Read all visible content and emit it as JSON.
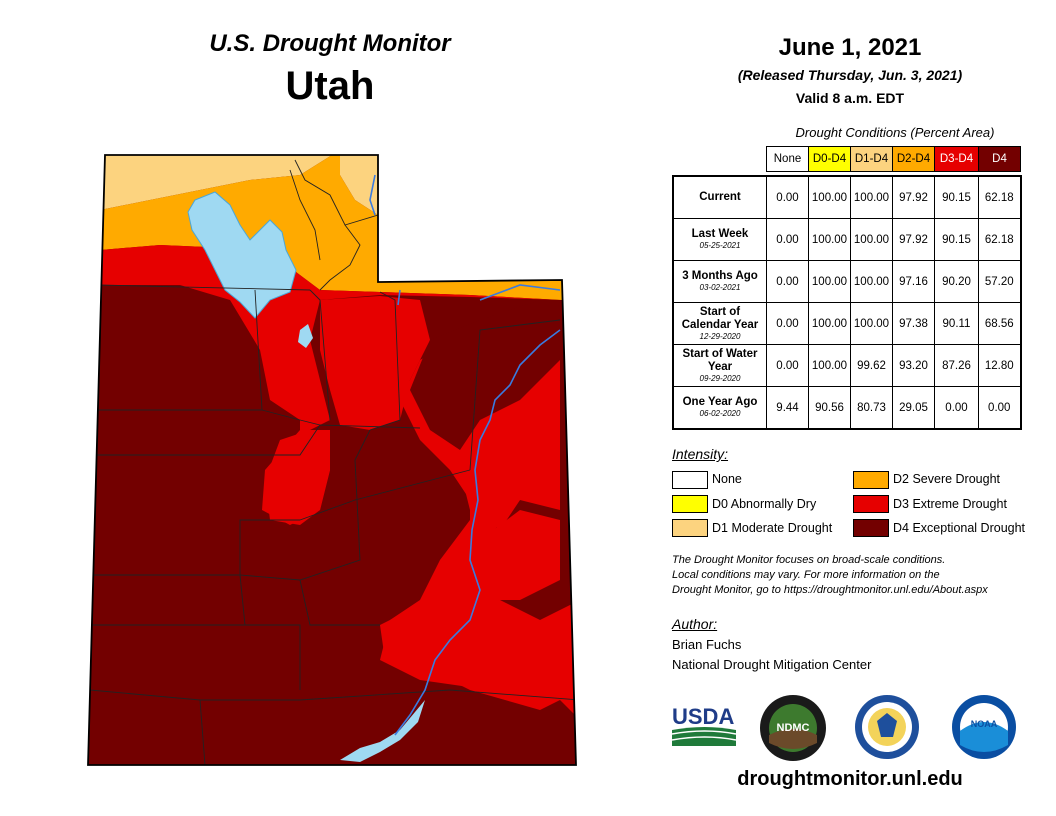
{
  "header": {
    "monitor_title": "U.S. Drought Monitor",
    "state": "Utah",
    "date": "June 1, 2021",
    "released": "(Released Thursday, Jun. 3, 2021)",
    "valid": "Valid 8 a.m. EDT"
  },
  "table": {
    "caption": "Drought Conditions (Percent Area)",
    "columns": [
      {
        "label": "None",
        "color": "#ffffff"
      },
      {
        "label": "D0-D4",
        "color": "#ffff00"
      },
      {
        "label": "D1-D4",
        "color": "#fcd37f"
      },
      {
        "label": "D2-D4",
        "color": "#ffaa00"
      },
      {
        "label": "D3-D4",
        "color": "#e60000"
      },
      {
        "label": "D4",
        "color": "#730000"
      }
    ],
    "rows": [
      {
        "label": "Current",
        "sub": "",
        "values": [
          "0.00",
          "100.00",
          "100.00",
          "97.92",
          "90.15",
          "62.18"
        ]
      },
      {
        "label": "Last Week",
        "sub": "05-25-2021",
        "values": [
          "0.00",
          "100.00",
          "100.00",
          "97.92",
          "90.15",
          "62.18"
        ]
      },
      {
        "label": "3 Months Ago",
        "sub": "03-02-2021",
        "values": [
          "0.00",
          "100.00",
          "100.00",
          "97.16",
          "90.20",
          "57.20"
        ]
      },
      {
        "label": "Start of Calendar Year",
        "sub": "12-29-2020",
        "values": [
          "0.00",
          "100.00",
          "100.00",
          "97.38",
          "90.11",
          "68.56"
        ]
      },
      {
        "label": "Start of Water Year",
        "sub": "09-29-2020",
        "values": [
          "0.00",
          "100.00",
          "99.62",
          "93.20",
          "87.26",
          "12.80"
        ]
      },
      {
        "label": "One Year Ago",
        "sub": "06-02-2020",
        "values": [
          "9.44",
          "90.56",
          "80.73",
          "29.05",
          "0.00",
          "0.00"
        ]
      }
    ]
  },
  "legend": {
    "title": "Intensity:",
    "items": [
      {
        "label": "None",
        "color": "#ffffff"
      },
      {
        "label": "D0 Abnormally Dry",
        "color": "#ffff00"
      },
      {
        "label": "D1 Moderate Drought",
        "color": "#fcd37f"
      },
      {
        "label": "D2 Severe Drought",
        "color": "#ffaa00"
      },
      {
        "label": "D3 Extreme Drought",
        "color": "#e60000"
      },
      {
        "label": "D4 Exceptional Drought",
        "color": "#730000"
      }
    ]
  },
  "note": {
    "line1": "The Drought Monitor focuses on broad-scale conditions.",
    "line2": "Local conditions may vary. For more information on the",
    "line3": "Drought Monitor, go to https://droughtmonitor.unl.edu/About.aspx"
  },
  "author": {
    "title": "Author:",
    "name": "Brian Fuchs",
    "org": "National Drought Mitigation Center"
  },
  "logos": {
    "usda": "USDA",
    "ndmc": "NDMC",
    "noaa": "NOAA",
    "doc_icon": "commerce-seal-icon"
  },
  "footer_url": "droughtmonitor.unl.edu",
  "colors": {
    "water": "#9fd9f2",
    "river": "#3a7be0",
    "county_line": "#222222"
  }
}
